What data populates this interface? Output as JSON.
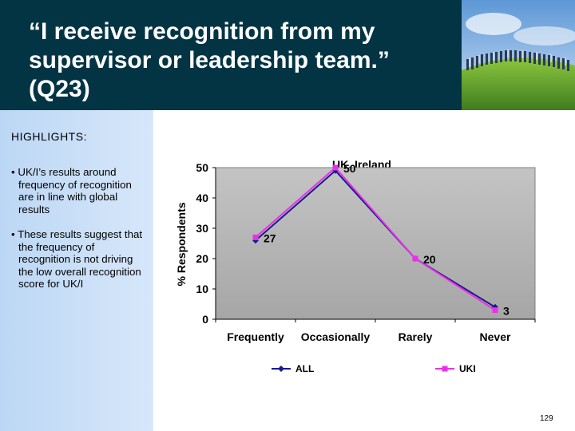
{
  "header": {
    "title": "“I receive recognition from my\nsupervisor or leadership team.”\n(Q23)"
  },
  "sidebar": {
    "title": "HIGHLIGHTS:",
    "bullets": [
      "• UK/I’s results around frequency of recognition are in line with global results",
      "• These results suggest that the frequency of recognition is not driving the low overall recognition score for UK/I"
    ]
  },
  "chart_data": {
    "type": "line",
    "title": "UK, Ireland",
    "xlabel": "",
    "ylabel": "% Respondents",
    "categories": [
      "Frequently",
      "Occasionally",
      "Rarely",
      "Never"
    ],
    "ylim": [
      0,
      50
    ],
    "yticks": [
      0,
      10,
      20,
      30,
      40,
      50
    ],
    "grid": false,
    "legend": "bottom",
    "series": [
      {
        "name": "ALL",
        "values": [
          26,
          49,
          20,
          4
        ],
        "color": "#1a1a8c",
        "marker": "diamond"
      },
      {
        "name": "UKI",
        "values": [
          27,
          50,
          20,
          3
        ],
        "color": "#e832e8",
        "marker": "square"
      }
    ],
    "data_labels": [
      "27",
      "50",
      "20",
      "3"
    ]
  },
  "page_number": "129"
}
